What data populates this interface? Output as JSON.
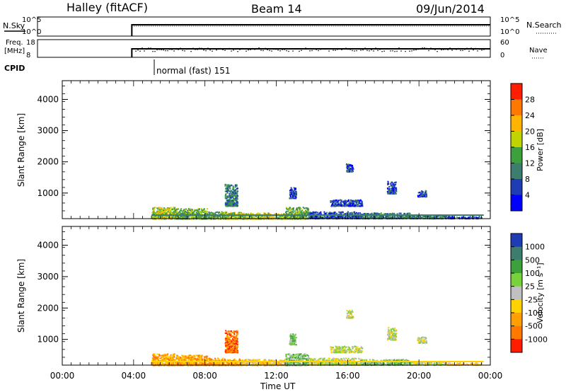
{
  "header": {
    "title": "Halley (fitACF)",
    "beam": "Beam 14",
    "date": "09/Jun/2014"
  },
  "top_panels": {
    "nsky_label": "N.Sky",
    "nsky_ticks": [
      "10^5",
      "10^0"
    ],
    "nsearch_label": "N.Search",
    "nsearch_ticks": [
      "10^5",
      "10^0"
    ],
    "freq_label_1": "Freq.",
    "freq_label_2": "[MHz]",
    "freq_ticks": [
      "18",
      "8"
    ],
    "nave_label": "Nave",
    "nave_ticks": [
      "60",
      "0"
    ],
    "cpid_label": "CPID",
    "cpid_text": "normal (fast) 151",
    "data_start_hour": 5.0
  },
  "x_axis": {
    "label": "Time UT",
    "ticks": [
      "00:00",
      "04:00",
      "08:00",
      "12:00",
      "16:00",
      "20:00",
      "00:00"
    ],
    "range_hours": [
      0,
      24
    ]
  },
  "chart_data": [
    {
      "type": "heatmap",
      "name": "power",
      "ylabel": "Slant Range [km]",
      "yticks": [
        "4000",
        "3000",
        "2000",
        "1000"
      ],
      "ylim": [
        180,
        4600
      ],
      "colorbar_label": "Power [dB]",
      "colorbar_ticks": [
        "28",
        "24",
        "20",
        "16",
        "12",
        "8",
        "4"
      ],
      "colorbar_colors": [
        "#ff1e00",
        "#ff7800",
        "#ffb400",
        "#bfd400",
        "#3ca03c",
        "#3c7d6e",
        "#1e3cb4",
        "#0000ff"
      ],
      "clusters": [
        {
          "t": [
            5.0,
            6.3
          ],
          "r": [
            190,
            560
          ],
          "level": 3
        },
        {
          "t": [
            6.3,
            8.1
          ],
          "r": [
            190,
            520
          ],
          "level": 4
        },
        {
          "t": [
            8.1,
            9.2
          ],
          "r": [
            190,
            420
          ],
          "level": 4
        },
        {
          "t": [
            9.2,
            10.0
          ],
          "r": [
            190,
            400
          ],
          "level": 3
        },
        {
          "t": [
            9.1,
            9.8
          ],
          "r": [
            600,
            1300
          ],
          "level": 5
        },
        {
          "t": [
            10.0,
            12.5
          ],
          "r": [
            190,
            380
          ],
          "level": 3
        },
        {
          "t": [
            12.5,
            13.8
          ],
          "r": [
            190,
            560
          ],
          "level": 4
        },
        {
          "t": [
            12.7,
            13.1
          ],
          "r": [
            850,
            1200
          ],
          "level": 6
        },
        {
          "t": [
            13.8,
            16.7
          ],
          "r": [
            200,
            420
          ],
          "level": 6
        },
        {
          "t": [
            16.7,
            19.5
          ],
          "r": [
            200,
            380
          ],
          "level": 5
        },
        {
          "t": [
            19.5,
            21.5
          ],
          "r": [
            200,
            320
          ],
          "level": 5
        },
        {
          "t": [
            21.5,
            23.5
          ],
          "r": [
            200,
            270
          ],
          "level": 6
        },
        {
          "t": [
            15.0,
            16.8
          ],
          "r": [
            600,
            800
          ],
          "level": 6
        },
        {
          "t": [
            15.9,
            16.3
          ],
          "r": [
            1700,
            1950
          ],
          "level": 6
        },
        {
          "t": [
            18.2,
            18.7
          ],
          "r": [
            1000,
            1400
          ],
          "level": 6
        },
        {
          "t": [
            19.9,
            20.4
          ],
          "r": [
            900,
            1100
          ],
          "level": 6
        }
      ]
    },
    {
      "type": "heatmap",
      "name": "velocity",
      "ylabel": "Slant Range [km]",
      "yticks": [
        "4000",
        "3000",
        "2000",
        "1000"
      ],
      "ylim": [
        180,
        4600
      ],
      "colorbar_label": "Velocity [m s⁻¹]",
      "colorbar_ticks": [
        "1000",
        "500",
        "100",
        "25",
        "-25",
        "-100",
        "-500",
        "-1000"
      ],
      "colorbar_colors": [
        "#1e3cb4",
        "#3c7d6e",
        "#3ca03c",
        "#78d23c",
        "#c0c0c0",
        "#ffd200",
        "#ffa000",
        "#ff7800",
        "#ff1e00"
      ],
      "clusters": [
        {
          "t": [
            5.0,
            6.3
          ],
          "r": [
            190,
            560
          ],
          "level": 6
        },
        {
          "t": [
            6.3,
            8.1
          ],
          "r": [
            190,
            520
          ],
          "level": 6
        },
        {
          "t": [
            8.1,
            9.2
          ],
          "r": [
            190,
            420
          ],
          "level": 6
        },
        {
          "t": [
            9.2,
            10.0
          ],
          "r": [
            190,
            400
          ],
          "level": 6
        },
        {
          "t": [
            9.1,
            9.8
          ],
          "r": [
            600,
            1300
          ],
          "level": 7
        },
        {
          "t": [
            10.0,
            12.5
          ],
          "r": [
            190,
            380
          ],
          "level": 5
        },
        {
          "t": [
            12.5,
            13.8
          ],
          "r": [
            190,
            560
          ],
          "level": 3
        },
        {
          "t": [
            12.7,
            13.1
          ],
          "r": [
            850,
            1200
          ],
          "level": 3
        },
        {
          "t": [
            13.8,
            16.7
          ],
          "r": [
            200,
            420
          ],
          "level": 4
        },
        {
          "t": [
            16.7,
            19.5
          ],
          "r": [
            200,
            380
          ],
          "level": 3
        },
        {
          "t": [
            19.5,
            21.5
          ],
          "r": [
            200,
            320
          ],
          "level": 4
        },
        {
          "t": [
            21.5,
            23.5
          ],
          "r": [
            200,
            270
          ],
          "level": 5
        },
        {
          "t": [
            15.0,
            16.8
          ],
          "r": [
            600,
            800
          ],
          "level": 4
        },
        {
          "t": [
            15.9,
            16.3
          ],
          "r": [
            1700,
            1950
          ],
          "level": 4
        },
        {
          "t": [
            18.2,
            18.7
          ],
          "r": [
            1000,
            1400
          ],
          "level": 4
        },
        {
          "t": [
            19.9,
            20.4
          ],
          "r": [
            900,
            1100
          ],
          "level": 4
        }
      ]
    }
  ]
}
